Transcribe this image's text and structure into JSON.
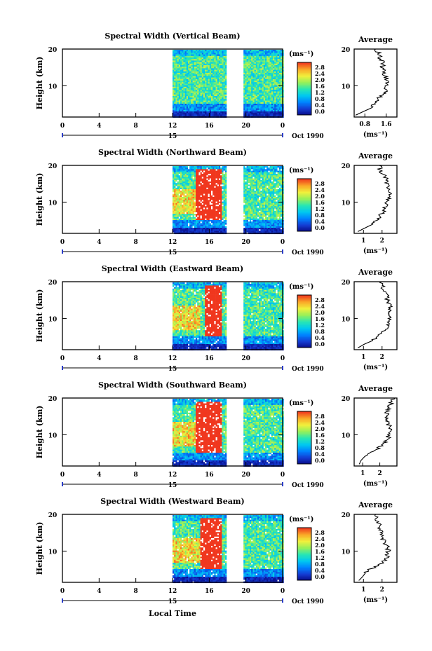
{
  "figure": {
    "colorbar_unit": "(ms⁻¹)",
    "colorbar_ticks": [
      "2.8",
      "2.4",
      "2.0",
      "1.6",
      "1.2",
      "0.8",
      "0.4",
      "0.0"
    ],
    "time_ticks": [
      "0",
      "4",
      "8",
      "12",
      "16",
      "20",
      "0"
    ],
    "date_day": "15",
    "date_label": "Oct 1990",
    "ylabel": "Height (km)",
    "xlabel": "Local Time",
    "avg_title": "Average",
    "avg_xlabel": "(ms⁻¹)",
    "height_ticks": [
      "20",
      "10"
    ]
  },
  "chart_data": [
    {
      "type": "heatmap",
      "title": "Spectral Width (Vertical Beam)",
      "ylabel": "Height (km)",
      "xlabel": "Local Time",
      "x_ticks": [
        "0",
        "4",
        "8",
        "12",
        "16",
        "20",
        "0"
      ],
      "ylim": [
        1.5,
        20
      ],
      "colorbar": {
        "unit": "(ms⁻¹)",
        "range": [
          0.0,
          3.0
        ]
      },
      "data_start_hour": 12,
      "gap_hours": [
        17.8,
        19.6
      ],
      "data_end_hour": 24,
      "saturated_block": null,
      "average": {
        "xticks": [
          "0.8",
          "1.6"
        ],
        "xlim": [
          0.4,
          2.0
        ],
        "profile": [
          [
            2,
            0.45
          ],
          [
            3,
            0.75
          ],
          [
            4,
            1.05
          ],
          [
            5,
            1.15
          ],
          [
            6,
            1.25
          ],
          [
            7,
            1.35
          ],
          [
            8,
            1.5
          ],
          [
            9,
            1.6
          ],
          [
            10,
            1.55
          ],
          [
            11,
            1.7
          ],
          [
            12,
            1.6
          ],
          [
            13,
            1.5
          ],
          [
            14,
            1.55
          ],
          [
            15,
            1.45
          ],
          [
            16,
            1.5
          ],
          [
            17,
            1.4
          ],
          [
            18,
            1.35
          ],
          [
            19,
            1.3
          ],
          [
            20,
            1.2
          ]
        ]
      }
    },
    {
      "type": "heatmap",
      "title": "Spectral Width (Northward Beam)",
      "ylabel": "Height (km)",
      "xlabel": "Local Time",
      "x_ticks": [
        "0",
        "4",
        "8",
        "12",
        "16",
        "20",
        "0"
      ],
      "ylim": [
        1.5,
        20
      ],
      "colorbar": {
        "unit": "(ms⁻¹)",
        "range": [
          0.0,
          3.0
        ]
      },
      "data_start_hour": 12,
      "gap_hours": [
        17.8,
        19.6
      ],
      "data_end_hour": 24,
      "saturated_block": [
        14.5,
        17.3
      ],
      "average": {
        "xticks": [
          "1",
          "2"
        ],
        "xlim": [
          0.5,
          2.8
        ],
        "profile": [
          [
            2,
            0.7
          ],
          [
            3,
            1.1
          ],
          [
            4,
            1.5
          ],
          [
            5,
            1.7
          ],
          [
            6,
            1.85
          ],
          [
            7,
            2.0
          ],
          [
            8,
            2.1
          ],
          [
            9,
            2.2
          ],
          [
            10,
            2.3
          ],
          [
            11,
            2.4
          ],
          [
            12,
            2.45
          ],
          [
            13,
            2.4
          ],
          [
            14,
            2.35
          ],
          [
            15,
            2.3
          ],
          [
            16,
            2.25
          ],
          [
            17,
            2.2
          ],
          [
            18,
            2.0
          ],
          [
            19,
            1.9
          ],
          [
            20,
            1.85
          ]
        ]
      }
    },
    {
      "type": "heatmap",
      "title": "Spectral Width (Eastward Beam)",
      "ylabel": "Height (km)",
      "xlabel": "Local Time",
      "x_ticks": [
        "0",
        "4",
        "8",
        "12",
        "16",
        "20",
        "0"
      ],
      "ylim": [
        1.5,
        20
      ],
      "colorbar": {
        "unit": "(ms⁻¹)",
        "range": [
          0.0,
          3.0
        ]
      },
      "data_start_hour": 12,
      "gap_hours": [
        17.8,
        19.6
      ],
      "data_end_hour": 24,
      "saturated_block": [
        15.5,
        17.3
      ],
      "average": {
        "xticks": [
          "1",
          "2"
        ],
        "xlim": [
          0.5,
          2.8
        ],
        "profile": [
          [
            2,
            0.7
          ],
          [
            3,
            1.05
          ],
          [
            4,
            1.5
          ],
          [
            5,
            1.8
          ],
          [
            6,
            2.0
          ],
          [
            7,
            2.15
          ],
          [
            8,
            2.3
          ],
          [
            9,
            2.4
          ],
          [
            10,
            2.45
          ],
          [
            11,
            2.4
          ],
          [
            12,
            2.5
          ],
          [
            13,
            2.45
          ],
          [
            14,
            2.4
          ],
          [
            15,
            2.3
          ],
          [
            16,
            2.25
          ],
          [
            17,
            2.2
          ],
          [
            18,
            2.1
          ],
          [
            19,
            2.0
          ],
          [
            20,
            1.9
          ]
        ]
      }
    },
    {
      "type": "heatmap",
      "title": "Spectral Width (Southward Beam)",
      "ylabel": "Height (km)",
      "xlabel": "Local Time",
      "x_ticks": [
        "0",
        "4",
        "8",
        "12",
        "16",
        "20",
        "0"
      ],
      "ylim": [
        1.5,
        20
      ],
      "colorbar": {
        "unit": "(ms⁻¹)",
        "range": [
          0.0,
          3.0
        ]
      },
      "data_start_hour": 12,
      "gap_hours": [
        17.8,
        19.6
      ],
      "data_end_hour": 24,
      "saturated_block": [
        14.5,
        17.3
      ],
      "average": {
        "xticks": [
          "1",
          "2"
        ],
        "xlim": [
          0.5,
          3.0
        ],
        "profile": [
          [
            2,
            0.8
          ],
          [
            3,
            0.9
          ],
          [
            4,
            1.1
          ],
          [
            5,
            1.4
          ],
          [
            6,
            1.8
          ],
          [
            7,
            2.1
          ],
          [
            8,
            2.3
          ],
          [
            9,
            2.45
          ],
          [
            10,
            2.55
          ],
          [
            11,
            2.6
          ],
          [
            12,
            2.55
          ],
          [
            13,
            2.5
          ],
          [
            14,
            2.45
          ],
          [
            15,
            2.4
          ],
          [
            16,
            2.4
          ],
          [
            17,
            2.5
          ],
          [
            18,
            2.6
          ],
          [
            19,
            2.7
          ],
          [
            20,
            2.85
          ]
        ]
      }
    },
    {
      "type": "heatmap",
      "title": "Spectral Width (Westward Beam)",
      "ylabel": "Height (km)",
      "xlabel": "Local Time",
      "x_ticks": [
        "0",
        "4",
        "8",
        "12",
        "16",
        "20",
        "0"
      ],
      "ylim": [
        1.5,
        20
      ],
      "colorbar": {
        "unit": "(ms⁻¹)",
        "range": [
          0.0,
          3.0
        ]
      },
      "data_start_hour": 12,
      "gap_hours": [
        17.8,
        19.6
      ],
      "data_end_hour": 24,
      "saturated_block": [
        15.0,
        17.3
      ],
      "average": {
        "xticks": [
          "1",
          "2"
        ],
        "xlim": [
          0.5,
          2.8
        ],
        "profile": [
          [
            2,
            0.75
          ],
          [
            3,
            0.95
          ],
          [
            4,
            1.1
          ],
          [
            5,
            1.35
          ],
          [
            6,
            1.8
          ],
          [
            7,
            2.1
          ],
          [
            8,
            2.2
          ],
          [
            9,
            2.3
          ],
          [
            10,
            2.35
          ],
          [
            11,
            2.3
          ],
          [
            12,
            2.2
          ],
          [
            13,
            2.1
          ],
          [
            14,
            2.0
          ],
          [
            15,
            1.95
          ],
          [
            16,
            1.9
          ],
          [
            17,
            1.85
          ],
          [
            18,
            1.8
          ],
          [
            19,
            1.7
          ],
          [
            20,
            1.65
          ]
        ]
      }
    }
  ]
}
